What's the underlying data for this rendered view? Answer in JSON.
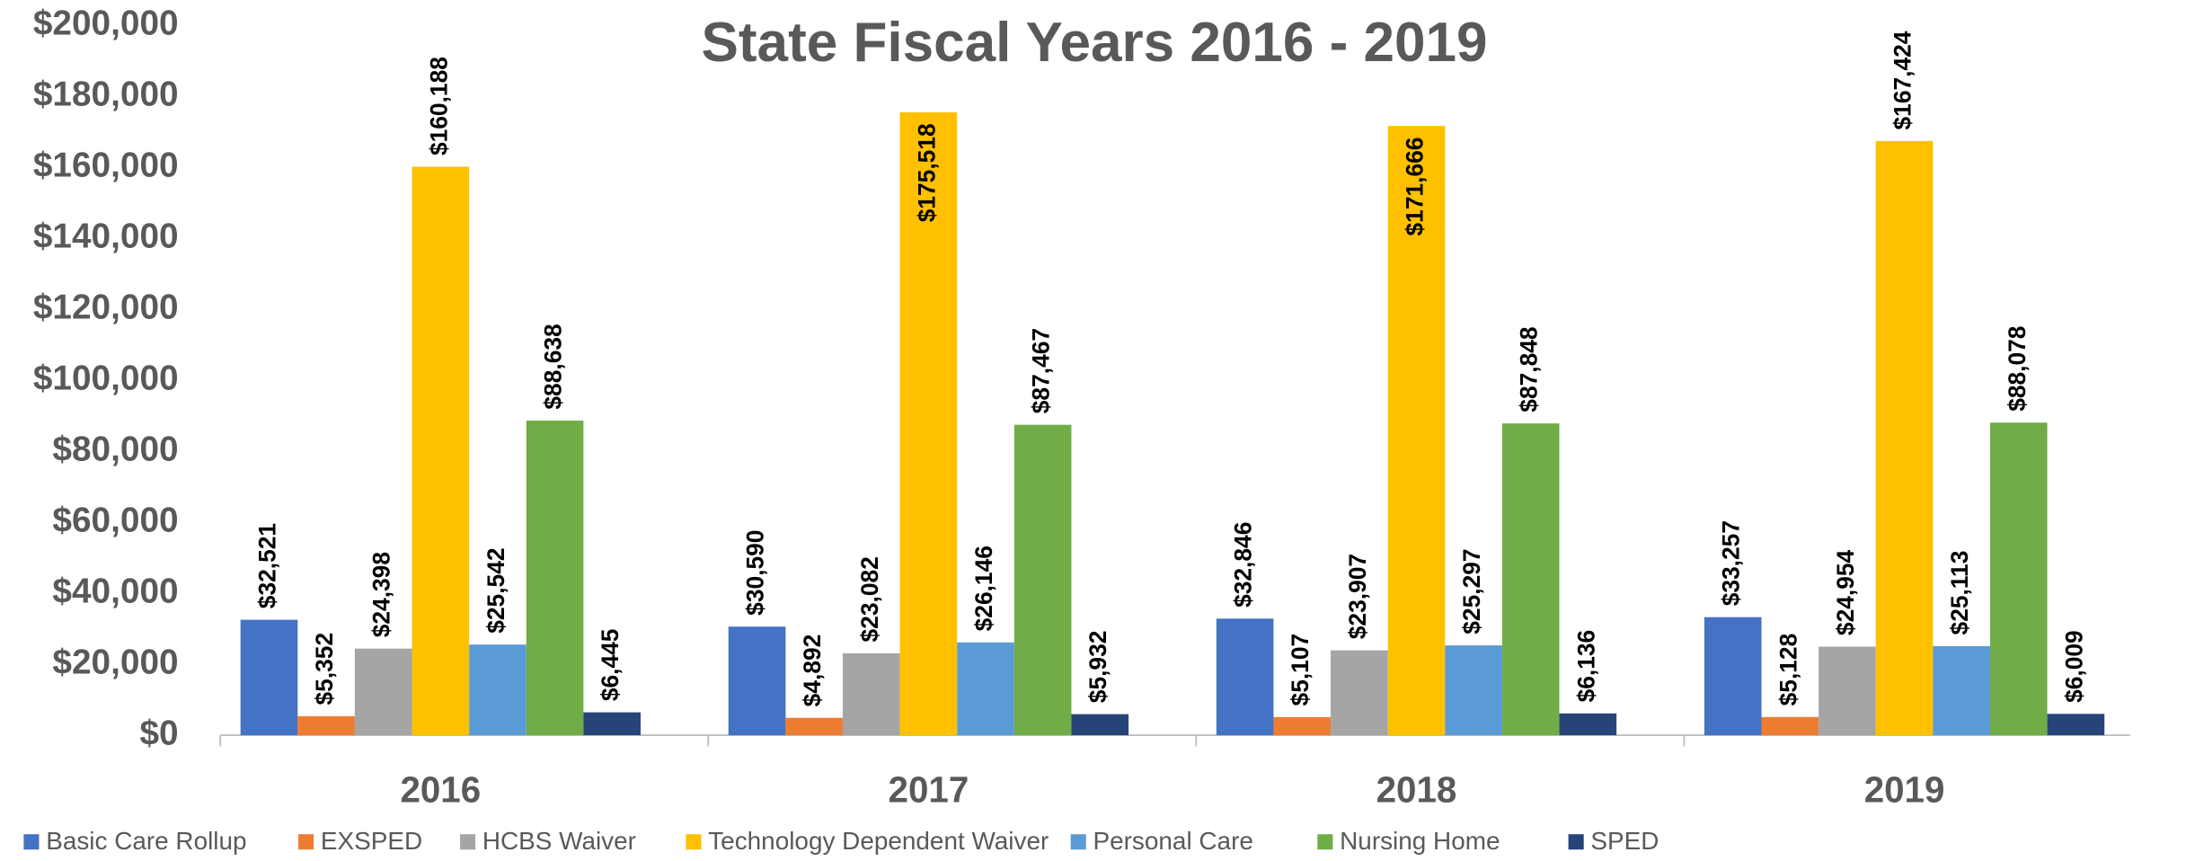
{
  "chart_data": {
    "type": "bar",
    "title": "State Fiscal Years 2016 - 2019",
    "categories": [
      "2016",
      "2017",
      "2018",
      "2019"
    ],
    "series": [
      {
        "name": "Basic Care Rollup",
        "color": "#4472c4",
        "values": [
          32521,
          30590,
          32846,
          33257
        ],
        "value_labels": [
          "$32,521",
          "$30,590",
          "$32,846",
          "$33,257"
        ]
      },
      {
        "name": "EXSPED",
        "color": "#ed7d31",
        "values": [
          5352,
          4892,
          5107,
          5128
        ],
        "value_labels": [
          "$5,352",
          "$4,892",
          "$5,107",
          "$5,128"
        ]
      },
      {
        "name": "HCBS Waiver",
        "color": "#a5a5a5",
        "values": [
          24398,
          23082,
          23907,
          24954
        ],
        "value_labels": [
          "$24,398",
          "$23,082",
          "$23,907",
          "$24,954"
        ]
      },
      {
        "name": "Technology Dependent Waiver",
        "color": "#ffc000",
        "values": [
          160188,
          175518,
          171666,
          167424
        ],
        "value_labels": [
          "$160,188",
          "$175,518",
          "$171,666",
          "$167,424"
        ]
      },
      {
        "name": "Personal Care",
        "color": "#5b9bd5",
        "values": [
          25542,
          26146,
          25297,
          25113
        ],
        "value_labels": [
          "$25,542",
          "$26,146",
          "$25,297",
          "$25,113"
        ]
      },
      {
        "name": "Nursing Home",
        "color": "#70ad47",
        "values": [
          88638,
          87467,
          87848,
          88078
        ],
        "value_labels": [
          "$88,638",
          "$87,467",
          "$87,848",
          "$88,078"
        ]
      },
      {
        "name": "SPED",
        "color": "#264478",
        "values": [
          6445,
          5932,
          6136,
          6009
        ],
        "value_labels": [
          "$6,445",
          "$5,932",
          "$6,136",
          "$6,009"
        ]
      }
    ],
    "ylim": [
      0,
      200000
    ],
    "yticks": [
      {
        "value": 0,
        "label": "$0"
      },
      {
        "value": 20000,
        "label": "$20,000"
      },
      {
        "value": 40000,
        "label": "$40,000"
      },
      {
        "value": 60000,
        "label": "$60,000"
      },
      {
        "value": 80000,
        "label": "$80,000"
      },
      {
        "value": 100000,
        "label": "$100,000"
      },
      {
        "value": 120000,
        "label": "$120,000"
      },
      {
        "value": 140000,
        "label": "$140,000"
      },
      {
        "value": 160000,
        "label": "$160,000"
      },
      {
        "value": 180000,
        "label": "$180,000"
      },
      {
        "value": 200000,
        "label": "$200,000"
      }
    ],
    "grid": false,
    "legend": "bottom"
  }
}
